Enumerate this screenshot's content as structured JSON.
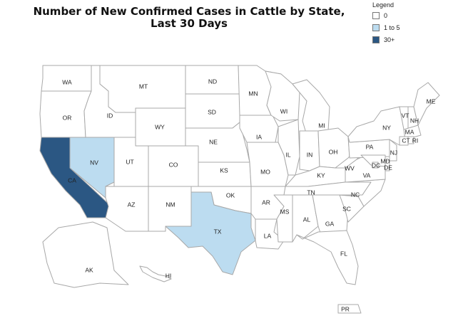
{
  "title_line1": "Number of New Confirmed Cases in Cattle by State,",
  "title_line2": "Last 30 Days",
  "legend": {
    "title": "Legend",
    "items": [
      {
        "label": "0",
        "color": "#ffffff"
      },
      {
        "label": "1 to 5",
        "color": "#bcdcf0"
      },
      {
        "label": "30+",
        "color": "#2b5783"
      }
    ]
  },
  "states": [
    {
      "abbr": "WA",
      "category": "0"
    },
    {
      "abbr": "OR",
      "category": "0"
    },
    {
      "abbr": "CA",
      "category": "30+"
    },
    {
      "abbr": "NV",
      "category": "1 to 5"
    },
    {
      "abbr": "ID",
      "category": "0"
    },
    {
      "abbr": "MT",
      "category": "0"
    },
    {
      "abbr": "WY",
      "category": "0"
    },
    {
      "abbr": "UT",
      "category": "0"
    },
    {
      "abbr": "AZ",
      "category": "0"
    },
    {
      "abbr": "CO",
      "category": "0"
    },
    {
      "abbr": "NM",
      "category": "0"
    },
    {
      "abbr": "ND",
      "category": "0"
    },
    {
      "abbr": "SD",
      "category": "0"
    },
    {
      "abbr": "NE",
      "category": "0"
    },
    {
      "abbr": "KS",
      "category": "0"
    },
    {
      "abbr": "OK",
      "category": "0"
    },
    {
      "abbr": "TX",
      "category": "1 to 5"
    },
    {
      "abbr": "MN",
      "category": "0"
    },
    {
      "abbr": "IA",
      "category": "0"
    },
    {
      "abbr": "MO",
      "category": "0"
    },
    {
      "abbr": "AR",
      "category": "0"
    },
    {
      "abbr": "LA",
      "category": "0"
    },
    {
      "abbr": "WI",
      "category": "0"
    },
    {
      "abbr": "IL",
      "category": "0"
    },
    {
      "abbr": "MI",
      "category": "0"
    },
    {
      "abbr": "IN",
      "category": "0"
    },
    {
      "abbr": "OH",
      "category": "0"
    },
    {
      "abbr": "KY",
      "category": "0"
    },
    {
      "abbr": "TN",
      "category": "0"
    },
    {
      "abbr": "MS",
      "category": "0"
    },
    {
      "abbr": "AL",
      "category": "0"
    },
    {
      "abbr": "GA",
      "category": "0"
    },
    {
      "abbr": "FL",
      "category": "0"
    },
    {
      "abbr": "SC",
      "category": "0"
    },
    {
      "abbr": "NC",
      "category": "0"
    },
    {
      "abbr": "VA",
      "category": "0"
    },
    {
      "abbr": "WV",
      "category": "0"
    },
    {
      "abbr": "PA",
      "category": "0"
    },
    {
      "abbr": "NY",
      "category": "0"
    },
    {
      "abbr": "VT",
      "category": "0"
    },
    {
      "abbr": "NH",
      "category": "0"
    },
    {
      "abbr": "ME",
      "category": "0"
    },
    {
      "abbr": "MA",
      "category": "0"
    },
    {
      "abbr": "CT",
      "category": "0"
    },
    {
      "abbr": "RI",
      "category": "0"
    },
    {
      "abbr": "NJ",
      "category": "0"
    },
    {
      "abbr": "DE",
      "category": "0"
    },
    {
      "abbr": "MD",
      "category": "0"
    },
    {
      "abbr": "DC",
      "category": "0"
    },
    {
      "abbr": "AK",
      "category": "0"
    },
    {
      "abbr": "HI",
      "category": "0"
    },
    {
      "abbr": "PR",
      "category": "0"
    }
  ]
}
